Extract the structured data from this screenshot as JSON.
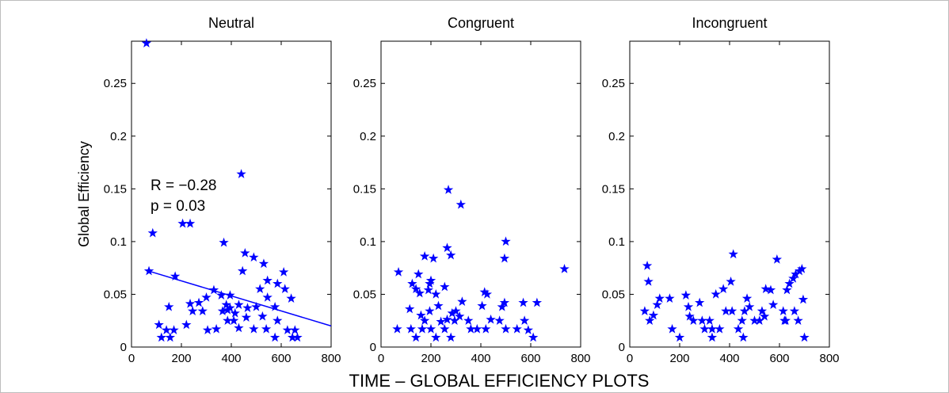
{
  "figure": {
    "caption": "TIME – GLOBAL EFFICIENCY PLOTS",
    "ylabel": "Global Efficiency"
  },
  "chart_data": [
    {
      "type": "scatter",
      "title": "Neutral",
      "xlim": [
        0,
        800
      ],
      "ylim": [
        0,
        0.29
      ],
      "xticks": [
        "0",
        "200",
        "400",
        "600",
        "800"
      ],
      "yticks": [
        "0",
        "0.05",
        "0.1",
        "0.15",
        "0.2",
        "0.25"
      ],
      "marker": "star",
      "color": "#0000ff",
      "annotation": [
        "R = −0.28",
        "p = 0.03"
      ],
      "fit_line": {
        "x": [
          70,
          800
        ],
        "y": [
          0.072,
          0.02
        ]
      },
      "points": [
        [
          60,
          0.288
        ],
        [
          440,
          0.164
        ],
        [
          85,
          0.108
        ],
        [
          205,
          0.117
        ],
        [
          235,
          0.117
        ],
        [
          70,
          0.072
        ],
        [
          175,
          0.067
        ],
        [
          370,
          0.099
        ],
        [
          455,
          0.089
        ],
        [
          490,
          0.085
        ],
        [
          530,
          0.079
        ],
        [
          445,
          0.072
        ],
        [
          545,
          0.063
        ],
        [
          515,
          0.055
        ],
        [
          585,
          0.06
        ],
        [
          610,
          0.071
        ],
        [
          615,
          0.055
        ],
        [
          640,
          0.046
        ],
        [
          545,
          0.047
        ],
        [
          575,
          0.038
        ],
        [
          330,
          0.054
        ],
        [
          360,
          0.049
        ],
        [
          395,
          0.049
        ],
        [
          380,
          0.04
        ],
        [
          395,
          0.037
        ],
        [
          415,
          0.032
        ],
        [
          430,
          0.04
        ],
        [
          465,
          0.037
        ],
        [
          500,
          0.038
        ],
        [
          300,
          0.047
        ],
        [
          270,
          0.042
        ],
        [
          235,
          0.041
        ],
        [
          245,
          0.034
        ],
        [
          220,
          0.021
        ],
        [
          285,
          0.034
        ],
        [
          305,
          0.016
        ],
        [
          340,
          0.017
        ],
        [
          365,
          0.034
        ],
        [
          385,
          0.025
        ],
        [
          410,
          0.025
        ],
        [
          430,
          0.018
        ],
        [
          460,
          0.028
        ],
        [
          490,
          0.017
        ],
        [
          525,
          0.029
        ],
        [
          540,
          0.017
        ],
        [
          575,
          0.009
        ],
        [
          585,
          0.025
        ],
        [
          625,
          0.016
        ],
        [
          645,
          0.009
        ],
        [
          655,
          0.016
        ],
        [
          665,
          0.009
        ],
        [
          110,
          0.021
        ],
        [
          120,
          0.009
        ],
        [
          140,
          0.016
        ],
        [
          150,
          0.038
        ],
        [
          155,
          0.009
        ],
        [
          170,
          0.016
        ],
        [
          385,
          0.035
        ]
      ]
    },
    {
      "type": "scatter",
      "title": "Congruent",
      "xlim": [
        0,
        800
      ],
      "ylim": [
        0,
        0.29
      ],
      "xticks": [
        "0",
        "200",
        "400",
        "600",
        "800"
      ],
      "yticks": [
        "0",
        "0.05",
        "0.1",
        "0.15",
        "0.2",
        "0.25"
      ],
      "marker": "star",
      "color": "#0000ff",
      "points": [
        [
          270,
          0.149
        ],
        [
          320,
          0.135
        ],
        [
          500,
          0.1
        ],
        [
          495,
          0.084
        ],
        [
          265,
          0.094
        ],
        [
          280,
          0.087
        ],
        [
          735,
          0.074
        ],
        [
          70,
          0.071
        ],
        [
          175,
          0.086
        ],
        [
          210,
          0.084
        ],
        [
          200,
          0.063
        ],
        [
          150,
          0.069
        ],
        [
          125,
          0.06
        ],
        [
          140,
          0.055
        ],
        [
          155,
          0.051
        ],
        [
          190,
          0.054
        ],
        [
          195,
          0.06
        ],
        [
          220,
          0.05
        ],
        [
          255,
          0.057
        ],
        [
          115,
          0.036
        ],
        [
          160,
          0.03
        ],
        [
          195,
          0.034
        ],
        [
          230,
          0.039
        ],
        [
          300,
          0.034
        ],
        [
          325,
          0.043
        ],
        [
          415,
          0.052
        ],
        [
          425,
          0.05
        ],
        [
          405,
          0.039
        ],
        [
          485,
          0.038
        ],
        [
          495,
          0.042
        ],
        [
          570,
          0.042
        ],
        [
          625,
          0.042
        ],
        [
          240,
          0.024
        ],
        [
          265,
          0.026
        ],
        [
          295,
          0.025
        ],
        [
          315,
          0.029
        ],
        [
          350,
          0.025
        ],
        [
          385,
          0.017
        ],
        [
          440,
          0.026
        ],
        [
          475,
          0.025
        ],
        [
          500,
          0.017
        ],
        [
          545,
          0.017
        ],
        [
          575,
          0.025
        ],
        [
          590,
          0.016
        ],
        [
          610,
          0.009
        ],
        [
          65,
          0.017
        ],
        [
          120,
          0.017
        ],
        [
          140,
          0.009
        ],
        [
          165,
          0.017
        ],
        [
          175,
          0.025
        ],
        [
          200,
          0.017
        ],
        [
          220,
          0.009
        ],
        [
          255,
          0.017
        ],
        [
          280,
          0.009
        ],
        [
          285,
          0.032
        ],
        [
          360,
          0.017
        ],
        [
          420,
          0.017
        ]
      ]
    },
    {
      "type": "scatter",
      "title": "Incongruent",
      "xlim": [
        0,
        800
      ],
      "ylim": [
        0,
        0.29
      ],
      "xticks": [
        "0",
        "200",
        "400",
        "600",
        "800"
      ],
      "yticks": [
        "0",
        "0.05",
        "0.1",
        "0.15",
        "0.2",
        "0.25"
      ],
      "marker": "star",
      "color": "#0000ff",
      "points": [
        [
          70,
          0.077
        ],
        [
          75,
          0.062
        ],
        [
          415,
          0.088
        ],
        [
          590,
          0.083
        ],
        [
          60,
          0.034
        ],
        [
          80,
          0.025
        ],
        [
          95,
          0.03
        ],
        [
          110,
          0.04
        ],
        [
          120,
          0.046
        ],
        [
          160,
          0.046
        ],
        [
          170,
          0.017
        ],
        [
          200,
          0.009
        ],
        [
          225,
          0.049
        ],
        [
          235,
          0.038
        ],
        [
          240,
          0.029
        ],
        [
          255,
          0.025
        ],
        [
          280,
          0.042
        ],
        [
          290,
          0.025
        ],
        [
          320,
          0.025
        ],
        [
          330,
          0.009
        ],
        [
          345,
          0.05
        ],
        [
          360,
          0.017
        ],
        [
          375,
          0.055
        ],
        [
          405,
          0.062
        ],
        [
          385,
          0.034
        ],
        [
          410,
          0.034
        ],
        [
          435,
          0.017
        ],
        [
          450,
          0.025
        ],
        [
          455,
          0.009
        ],
        [
          460,
          0.034
        ],
        [
          470,
          0.046
        ],
        [
          500,
          0.025
        ],
        [
          520,
          0.025
        ],
        [
          530,
          0.034
        ],
        [
          545,
          0.055
        ],
        [
          565,
          0.054
        ],
        [
          615,
          0.034
        ],
        [
          625,
          0.025
        ],
        [
          630,
          0.054
        ],
        [
          640,
          0.06
        ],
        [
          655,
          0.065
        ],
        [
          665,
          0.069
        ],
        [
          680,
          0.072
        ],
        [
          690,
          0.074
        ],
        [
          695,
          0.045
        ],
        [
          700,
          0.009
        ],
        [
          660,
          0.034
        ],
        [
          675,
          0.025
        ],
        [
          620,
          0.025
        ],
        [
          540,
          0.029
        ],
        [
          575,
          0.04
        ],
        [
          480,
          0.038
        ],
        [
          330,
          0.017
        ],
        [
          300,
          0.017
        ]
      ]
    }
  ]
}
